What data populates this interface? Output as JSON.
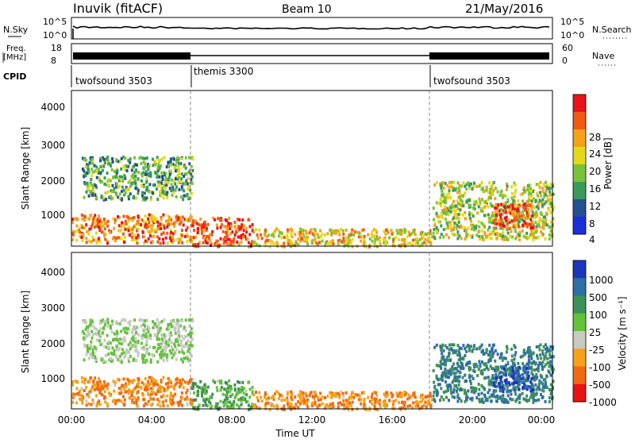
{
  "header": {
    "station": "Inuvik (fitACF)",
    "beam": "Beam 10",
    "date": "21/May/2016"
  },
  "nsky_panel": {
    "left_label": "N.Sky",
    "left_ticks": [
      "10^5",
      "10^0"
    ],
    "right_ticks": [
      "10^5",
      "10^0"
    ],
    "right_label": "N.Search"
  },
  "freq_panel": {
    "left_label_1": "Freq.",
    "left_label_2": "[MHz]",
    "left_ticks": [
      "18",
      "8"
    ],
    "right_ticks": [
      "60",
      "0"
    ],
    "right_label": "Nave"
  },
  "cpid": {
    "label": "CPID",
    "segments": [
      {
        "name": "twofsound 3503",
        "start_hour": 0,
        "end_hour": 6
      },
      {
        "name": "themis 3300",
        "start_hour": 6,
        "end_hour": 18
      },
      {
        "name": "twofsound 3503",
        "start_hour": 18,
        "end_hour": 24
      }
    ]
  },
  "power_panel": {
    "ylabel": "Slant Range [km]",
    "yticks": [
      "4000",
      "3000",
      "2000",
      "1000"
    ],
    "colorbar_label": "Power [dB]",
    "colorbar_ticks": [
      "28",
      "24",
      "20",
      "16",
      "12",
      "8",
      "4"
    ],
    "colors": [
      "#e8141a",
      "#f05a14",
      "#f5a21a",
      "#e3d91a",
      "#78c33a",
      "#3a9a5a",
      "#23508f",
      "#1a2fd9"
    ]
  },
  "velocity_panel": {
    "ylabel": "Slant Range [km]",
    "yticks": [
      "4000",
      "3000",
      "2000",
      "1000"
    ],
    "colorbar_label": "Velocity [m s⁻¹]",
    "colorbar_ticks": [
      "1000",
      "500",
      "100",
      "25",
      "-25",
      "-100",
      "-500",
      "-1000"
    ],
    "colors": [
      "#1b35b8",
      "#2e6fa4",
      "#3f8f5a",
      "#63c23a",
      "#c9c9c3",
      "#f5a21a",
      "#f06a14",
      "#e81414"
    ]
  },
  "xaxis": {
    "ticks": [
      "00:00",
      "04:00",
      "08:00",
      "12:00",
      "16:00",
      "20:00",
      "00:00"
    ],
    "label": "Time UT"
  },
  "chart_data": {
    "type": "heatmap",
    "x_range_hours": [
      0,
      24
    ],
    "y_range_km": [
      180,
      4500
    ],
    "regions": [
      {
        "hours": [
          0.0,
          6.0
        ],
        "km": [
          300,
          1100
        ],
        "power_db": 24,
        "velocity": -100
      },
      {
        "hours": [
          6.0,
          9.0
        ],
        "km": [
          200,
          1000
        ],
        "power_db": 28,
        "velocity": 100
      },
      {
        "hours": [
          0.5,
          6.0
        ],
        "km": [
          1500,
          2700
        ],
        "power_db": 12,
        "velocity": 25
      },
      {
        "hours": [
          9.0,
          18.0
        ],
        "km": [
          200,
          700
        ],
        "power_db": 20,
        "velocity": -100
      },
      {
        "hours": [
          18.0,
          24.0
        ],
        "km": [
          400,
          2000
        ],
        "power_db": 16,
        "velocity": 500
      },
      {
        "hours": [
          21.0,
          23.0
        ],
        "km": [
          700,
          1400
        ],
        "power_db": 28,
        "velocity": 1000
      }
    ]
  }
}
